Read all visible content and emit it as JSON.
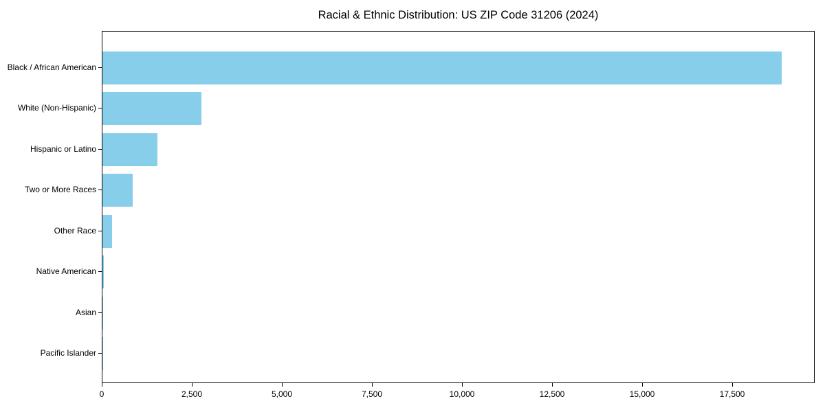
{
  "chart_data": {
    "type": "bar",
    "orientation": "horizontal",
    "title": "Racial & Ethnic Distribution: US ZIP Code 31206 (2024)",
    "categories": [
      "Black / African American",
      "White (Non-Hispanic)",
      "Hispanic or Latino",
      "Two or More Races",
      "Other Race",
      "Native American",
      "Asian",
      "Pacific Islander"
    ],
    "values": [
      18850,
      2750,
      1525,
      840,
      265,
      30,
      25,
      10
    ],
    "bar_color": "#87CEEB",
    "xlabel": "",
    "ylabel": "",
    "xlim": [
      0,
      19790
    ],
    "x_ticks": [
      {
        "value": 0,
        "label": "0"
      },
      {
        "value": 2500,
        "label": "2,500"
      },
      {
        "value": 5000,
        "label": "5,000"
      },
      {
        "value": 7500,
        "label": "7,500"
      },
      {
        "value": 10000,
        "label": "10,000"
      },
      {
        "value": 12500,
        "label": "12,500"
      },
      {
        "value": 15000,
        "label": "15,000"
      },
      {
        "value": 17500,
        "label": "17,500"
      }
    ],
    "grid": false,
    "legend": null
  }
}
